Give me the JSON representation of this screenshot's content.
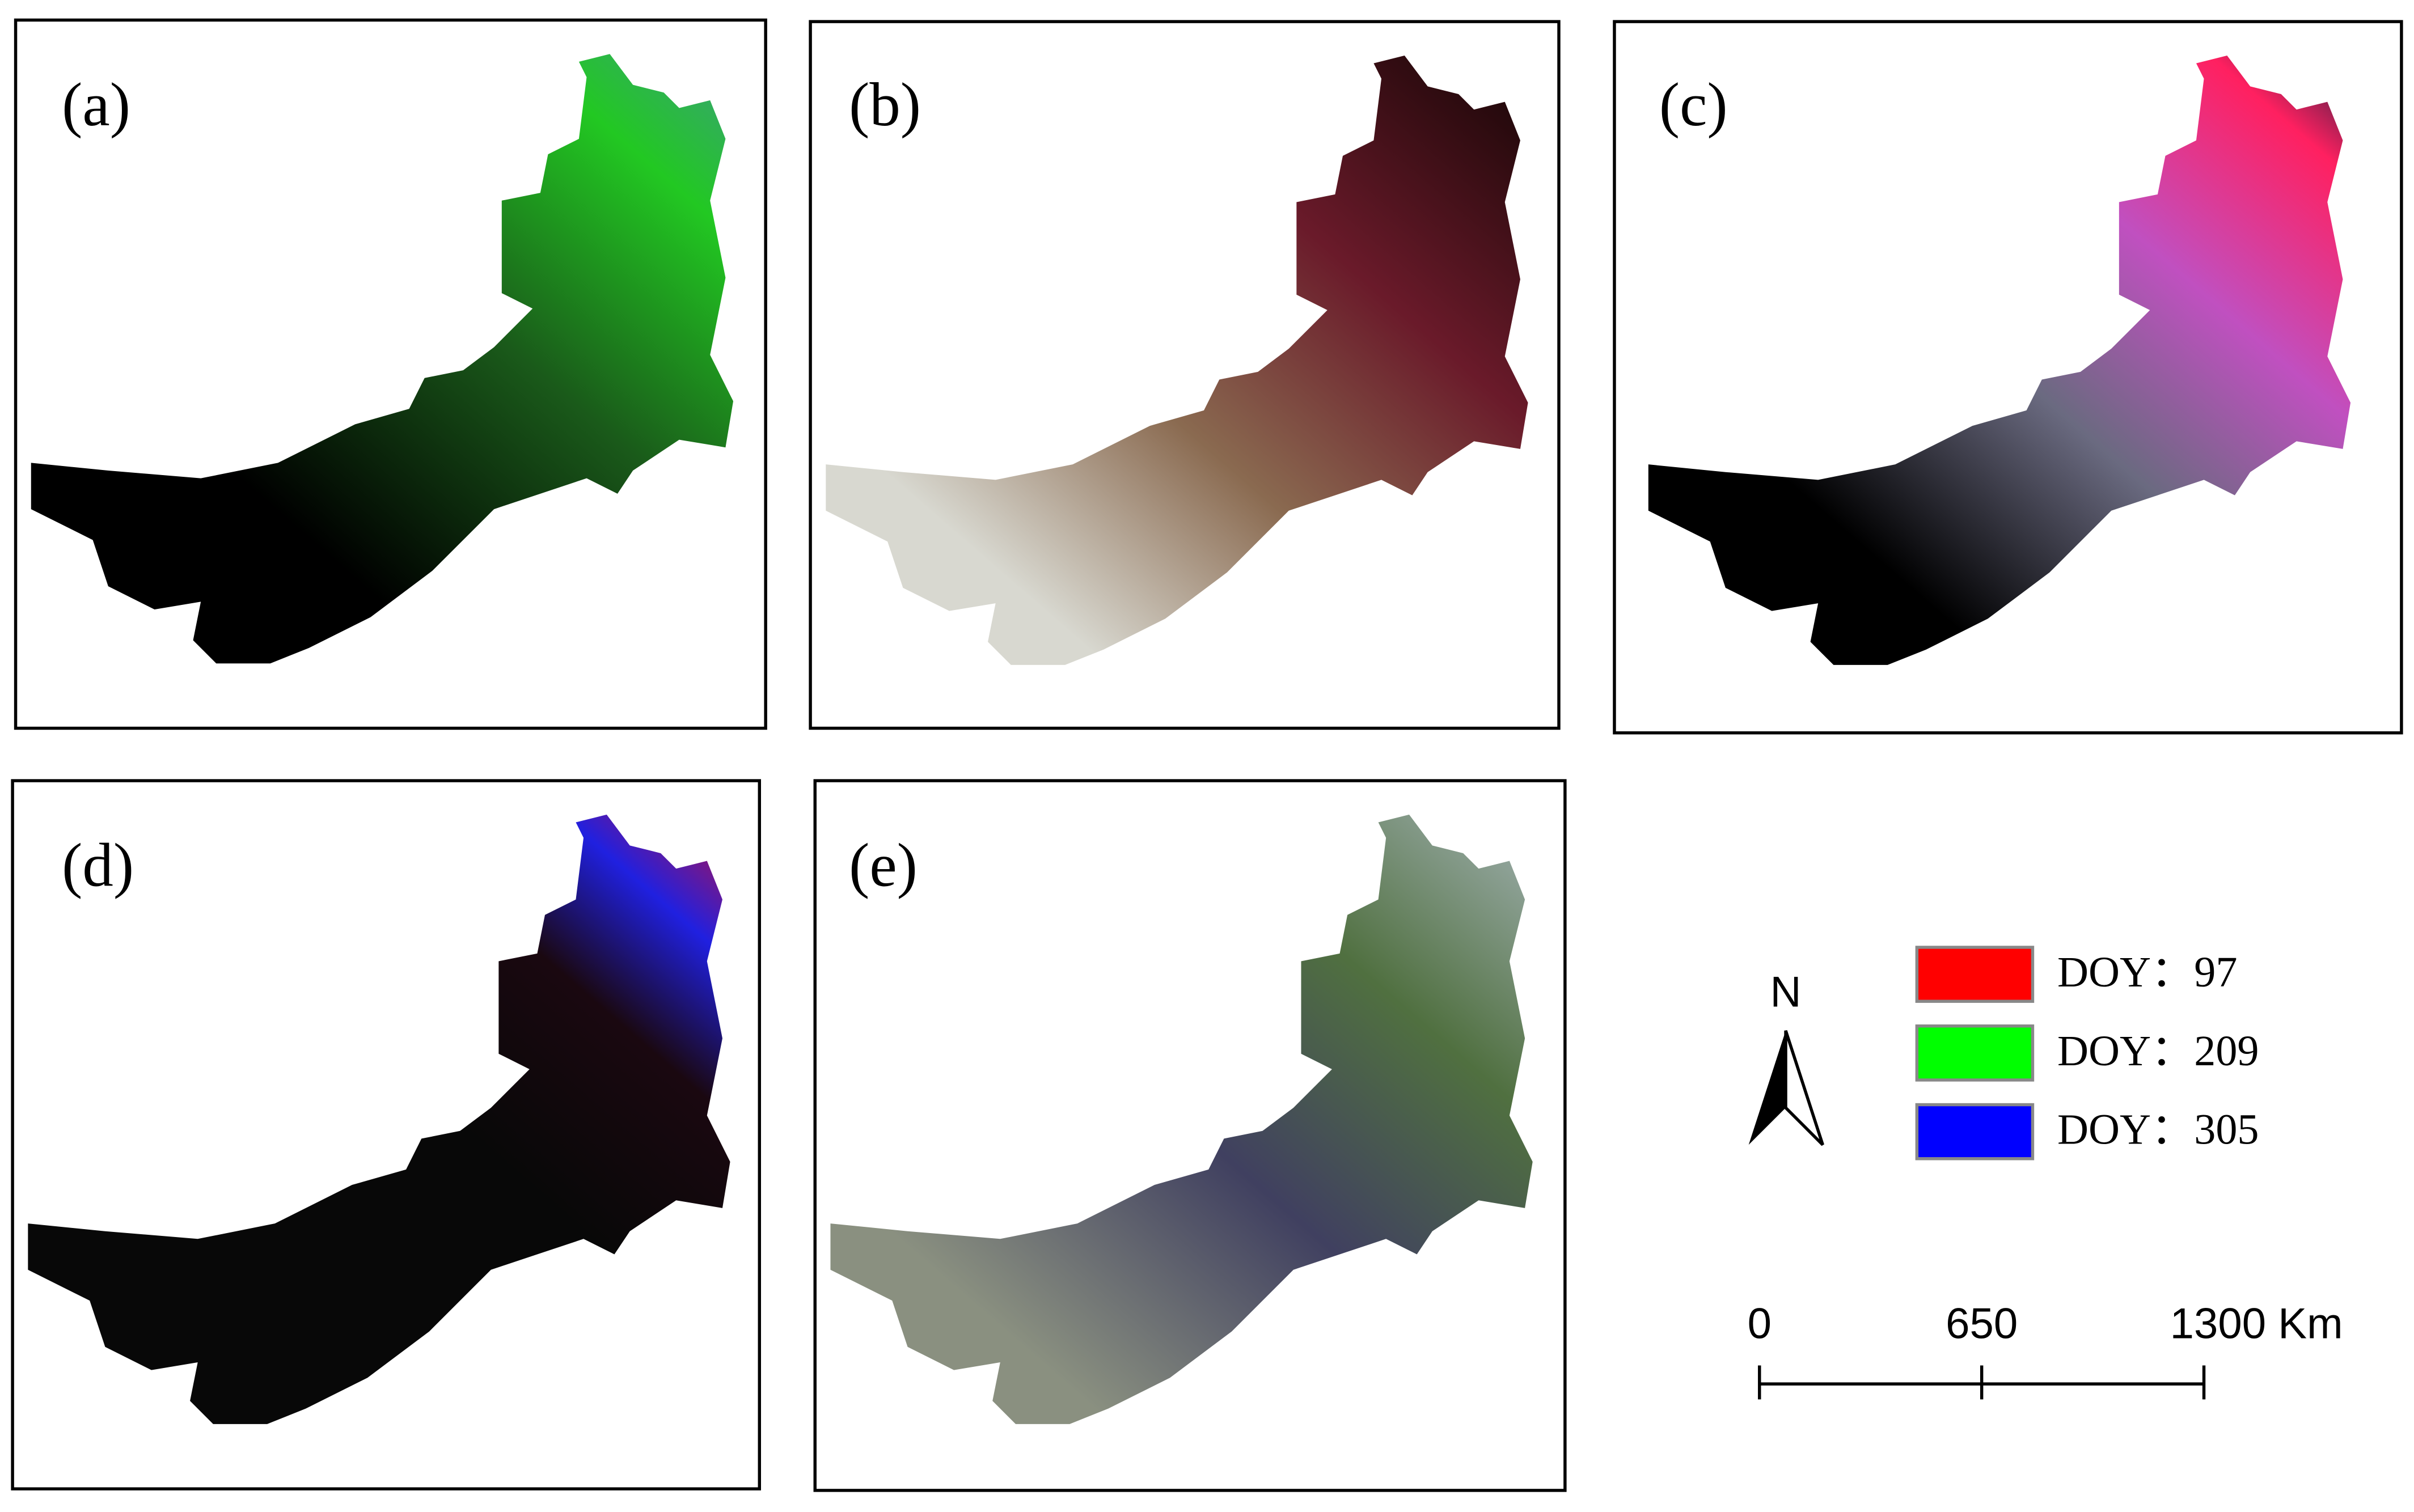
{
  "panels": [
    {
      "label": "(a)"
    },
    {
      "label": "(b)"
    },
    {
      "label": "(c)"
    },
    {
      "label": "(d)"
    },
    {
      "label": "(e)"
    }
  ],
  "legend": {
    "items": [
      {
        "label": "DOY：97",
        "color": "#ff0000"
      },
      {
        "label": "DOY：209",
        "color": "#00ff00"
      },
      {
        "label": "DOY：305",
        "color": "#0000ff"
      }
    ]
  },
  "north_arrow": {
    "label": "N"
  },
  "scale_bar": {
    "labels": [
      "0",
      "650",
      "1300 Km"
    ]
  }
}
